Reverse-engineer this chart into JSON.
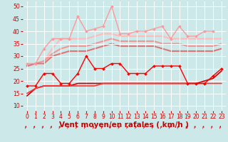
{
  "bg_color": "#cce8e8",
  "grid_color": "#ffffff",
  "xlabel": "Vent moyen/en rafales ( km/h )",
  "xlabel_color": "#cc0000",
  "ylabel_ticks": [
    10,
    15,
    20,
    25,
    30,
    35,
    40,
    45,
    50
  ],
  "xlim": [
    -0.5,
    23.5
  ],
  "ylim": [
    8,
    52
  ],
  "xticks": [
    0,
    1,
    2,
    3,
    4,
    5,
    6,
    7,
    8,
    9,
    10,
    11,
    12,
    13,
    14,
    15,
    16,
    17,
    18,
    19,
    20,
    21,
    22,
    23
  ],
  "lines": [
    {
      "x": [
        0,
        1,
        2,
        3,
        4,
        5,
        6,
        7,
        8,
        9,
        10,
        11,
        12,
        13,
        14,
        15,
        16,
        17,
        18,
        19,
        20,
        21,
        22,
        23
      ],
      "y": [
        26,
        27,
        28,
        33,
        37,
        37,
        37,
        37,
        38,
        39,
        39,
        38,
        38,
        38,
        38,
        38,
        38,
        37,
        37,
        37,
        37,
        37,
        37,
        37
      ],
      "color": "#ffbbbb",
      "marker": null,
      "linewidth": 1.5,
      "markersize": 0,
      "zorder": 1
    },
    {
      "x": [
        0,
        1,
        2,
        3,
        4,
        5,
        6,
        7,
        8,
        9,
        10,
        11,
        12,
        13,
        14,
        15,
        16,
        17,
        18,
        19,
        20,
        21,
        22,
        23
      ],
      "y": [
        26,
        27,
        28,
        31,
        33,
        34,
        34,
        34,
        35,
        36,
        37,
        36,
        36,
        36,
        36,
        36,
        35,
        35,
        35,
        34,
        34,
        34,
        34,
        35
      ],
      "color": "#ee9999",
      "marker": null,
      "linewidth": 1.5,
      "markersize": 0,
      "zorder": 1
    },
    {
      "x": [
        0,
        1,
        2,
        3,
        4,
        5,
        6,
        7,
        8,
        9,
        10,
        11,
        12,
        13,
        14,
        15,
        16,
        17,
        18,
        19,
        20,
        21,
        22,
        23
      ],
      "y": [
        26,
        27,
        27,
        30,
        31,
        32,
        32,
        32,
        33,
        34,
        35,
        34,
        34,
        34,
        34,
        34,
        33,
        32,
        32,
        32,
        32,
        32,
        32,
        33
      ],
      "color": "#dd7777",
      "marker": null,
      "linewidth": 1.5,
      "markersize": 0,
      "zorder": 1
    },
    {
      "x": [
        0,
        1,
        2,
        3,
        4,
        5,
        6,
        7,
        8,
        9,
        10,
        11,
        12,
        13,
        14,
        15,
        16,
        17,
        18,
        19,
        20,
        21,
        22,
        23
      ],
      "y": [
        14,
        17,
        18,
        18,
        18,
        18,
        19,
        19,
        19,
        19,
        19,
        19,
        19,
        19,
        19,
        19,
        19,
        19,
        19,
        19,
        19,
        20,
        21,
        24
      ],
      "color": "#cc0000",
      "marker": null,
      "linewidth": 1.2,
      "markersize": 0,
      "zorder": 2
    },
    {
      "x": [
        0,
        1,
        2,
        3,
        4,
        5,
        6,
        7,
        8,
        9,
        10,
        11,
        12,
        13,
        14,
        15,
        16,
        17,
        18,
        19,
        20,
        21,
        22,
        23
      ],
      "y": [
        15,
        17,
        18,
        18,
        18,
        18,
        18,
        18,
        18,
        19,
        19,
        19,
        19,
        19,
        19,
        19,
        19,
        19,
        19,
        19,
        19,
        19,
        19,
        19
      ],
      "color": "#ff3333",
      "marker": null,
      "linewidth": 1.2,
      "markersize": 0,
      "zorder": 2
    },
    {
      "x": [
        0,
        1,
        2,
        3,
        4,
        5,
        6,
        7,
        8,
        9,
        10,
        11,
        12,
        13,
        14,
        15,
        16,
        17,
        18,
        19,
        20,
        21,
        22,
        23
      ],
      "y": [
        18,
        18,
        23,
        23,
        19,
        19,
        23,
        30,
        25,
        25,
        27,
        27,
        23,
        23,
        23,
        26,
        26,
        26,
        26,
        19,
        19,
        19,
        22,
        25
      ],
      "color": "#ff0000",
      "marker": "D",
      "linewidth": 1.0,
      "markersize": 2.0,
      "zorder": 3
    },
    {
      "x": [
        0,
        1,
        2,
        3,
        4,
        5,
        6,
        7,
        8,
        9,
        10,
        11,
        12,
        13,
        14,
        15,
        16,
        17,
        18,
        19,
        20,
        21,
        22,
        23
      ],
      "y": [
        27,
        27,
        33,
        37,
        37,
        37,
        46,
        40,
        41,
        42,
        50,
        39,
        39,
        40,
        40,
        41,
        42,
        37,
        42,
        38,
        38,
        40,
        40,
        null
      ],
      "color": "#ff9999",
      "marker": "D",
      "linewidth": 1.0,
      "markersize": 2.0,
      "zorder": 3
    }
  ],
  "arrow_color": "#cc0000",
  "tick_color": "#cc0000",
  "tick_fontsize": 5.5,
  "xlabel_fontsize": 7.5
}
